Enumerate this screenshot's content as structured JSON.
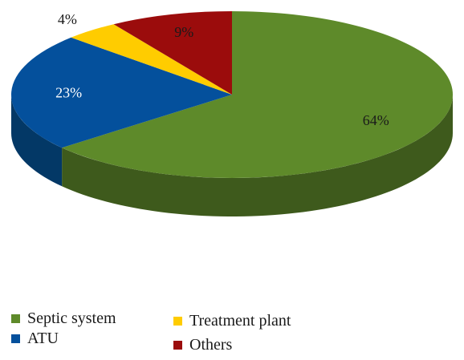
{
  "chart_data": {
    "type": "pie",
    "title": "",
    "style": "3d",
    "slices": [
      {
        "label": "Septic system",
        "value": 64,
        "value_label": "64%",
        "color": "#5e8a2a",
        "side_color": "#3e5a1c"
      },
      {
        "label": "ATU",
        "value": 23,
        "value_label": "23%",
        "color": "#04509c",
        "side_color": "#033866"
      },
      {
        "label": "Treatment plant",
        "value": 4,
        "value_label": "4%",
        "color": "#ffcc00",
        "side_color": "#c9a000"
      },
      {
        "label": "Others",
        "value": 9,
        "value_label": "9%",
        "color": "#9b0c0c",
        "side_color": "#650808"
      }
    ],
    "legend_placement": "bottom"
  }
}
